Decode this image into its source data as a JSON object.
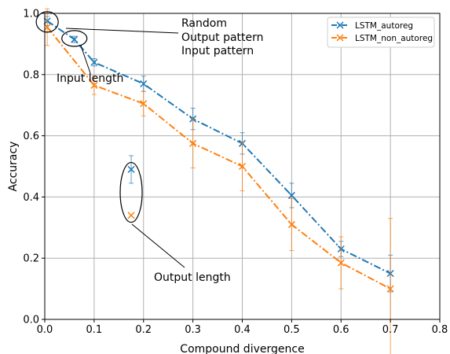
{
  "chart_data": {
    "type": "line",
    "title": "",
    "xlabel": "Compound divergence",
    "ylabel": "Accuracy",
    "xlim": [
      0.0,
      0.8
    ],
    "ylim": [
      0.0,
      1.0
    ],
    "x_ticks": [
      "0.0",
      "0.1",
      "0.2",
      "0.3",
      "0.4",
      "0.5",
      "0.6",
      "0.7",
      "0.8"
    ],
    "y_ticks": [
      "0.0",
      "0.2",
      "0.4",
      "0.6",
      "0.8",
      "1.0"
    ],
    "grid": true,
    "legend_position": "top-right",
    "series": [
      {
        "name": "LSTM_autoreg",
        "color": "#1f77b4",
        "line_style": "dash-dot",
        "marker": "x",
        "x": [
          0.005,
          0.06,
          0.1,
          0.2,
          0.3,
          0.4,
          0.5,
          0.6,
          0.7
        ],
        "y": [
          0.975,
          0.915,
          0.84,
          0.77,
          0.655,
          0.575,
          0.405,
          0.23,
          0.15
        ],
        "err": [
          0.015,
          0.01,
          0.012,
          0.025,
          0.035,
          0.035,
          0.04,
          0.025,
          0.06
        ]
      },
      {
        "name": "LSTM_non_autoreg",
        "color": "#ff7f0e",
        "line_style": "dash-dot",
        "marker": "x",
        "x": [
          0.005,
          0.1,
          0.2,
          0.3,
          0.4,
          0.5,
          0.6,
          0.7
        ],
        "y": [
          0.955,
          0.765,
          0.705,
          0.575,
          0.5,
          0.31,
          0.185,
          0.1
        ],
        "err": [
          0.06,
          0.03,
          0.04,
          0.08,
          0.08,
          0.085,
          0.085,
          0.23
        ]
      }
    ],
    "isolated_points": [
      {
        "series": "LSTM_autoreg",
        "x": 0.175,
        "y": 0.49,
        "err": 0.045
      },
      {
        "series": "LSTM_non_autoreg",
        "x": 0.175,
        "y": 0.34,
        "err": 0.0
      }
    ],
    "annotations": [
      {
        "text": "Random",
        "target_x": 0.005,
        "target_y": 0.97
      },
      {
        "text": "Output pattern",
        "target_x": 0.005,
        "target_y": 0.97
      },
      {
        "text": "Input pattern",
        "target_x": 0.005,
        "target_y": 0.97
      },
      {
        "text": "Input length",
        "target_x": 0.06,
        "target_y": 0.915
      },
      {
        "text": "Output length",
        "target_x": 0.175,
        "target_y": 0.415
      }
    ]
  }
}
